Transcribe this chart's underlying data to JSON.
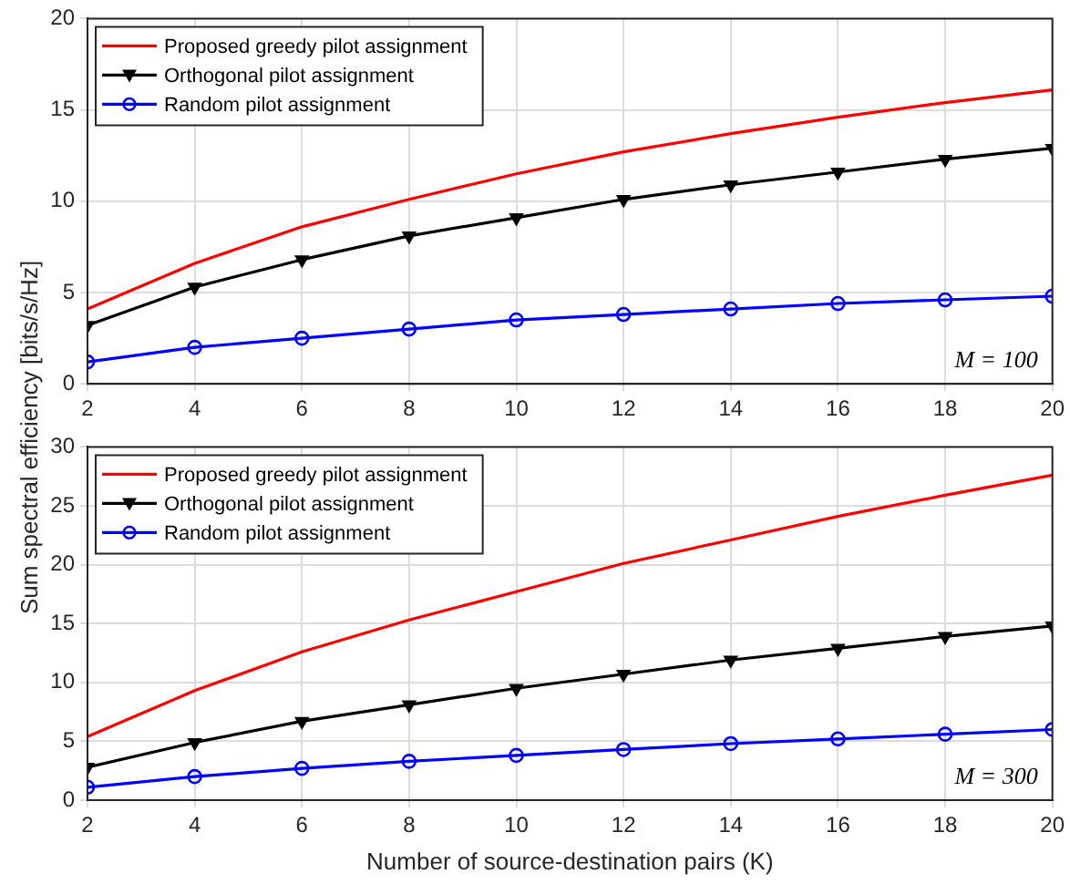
{
  "chart_data": [
    {
      "type": "line",
      "ylabel": "Sum spectral efficiency [bits/s/Hz]",
      "x": [
        2,
        4,
        6,
        8,
        10,
        12,
        14,
        16,
        18,
        20
      ],
      "xlim": [
        2,
        20
      ],
      "xticks": [
        2,
        4,
        6,
        8,
        10,
        12,
        14,
        16,
        18,
        20
      ],
      "ylim": [
        0,
        20
      ],
      "yticks": [
        0,
        5,
        10,
        15,
        20
      ],
      "grid": true,
      "legend": "top left",
      "annotations": [
        "M = 100"
      ],
      "series": [
        {
          "name": "Proposed greedy pilot assignment",
          "color": "#ff0000",
          "marker": "none",
          "values": [
            4.1,
            6.6,
            8.6,
            10.1,
            11.5,
            12.7,
            13.7,
            14.6,
            15.4,
            16.1
          ]
        },
        {
          "name": "Orthogonal pilot assignment",
          "color": "#000000",
          "marker": "triangle",
          "values": [
            3.2,
            5.3,
            6.8,
            8.1,
            9.1,
            10.1,
            10.9,
            11.6,
            12.3,
            12.9
          ]
        },
        {
          "name": "Random pilot assignment",
          "color": "#0000ff",
          "marker": "circle",
          "values": [
            1.2,
            2.0,
            2.5,
            3.0,
            3.5,
            3.8,
            4.1,
            4.4,
            4.6,
            4.8
          ]
        }
      ]
    },
    {
      "type": "line",
      "xlabel": "Number of source-destination pairs (K)",
      "x": [
        2,
        4,
        6,
        8,
        10,
        12,
        14,
        16,
        18,
        20
      ],
      "xlim": [
        2,
        20
      ],
      "xticks": [
        2,
        4,
        6,
        8,
        10,
        12,
        14,
        16,
        18,
        20
      ],
      "ylim": [
        0,
        30
      ],
      "yticks": [
        0,
        5,
        10,
        15,
        20,
        25,
        30
      ],
      "grid": true,
      "legend": "top left",
      "annotations": [
        "M = 300"
      ],
      "series": [
        {
          "name": "Proposed greedy pilot assignment",
          "color": "#ff0000",
          "marker": "none",
          "values": [
            5.4,
            9.3,
            12.6,
            15.3,
            17.7,
            20.1,
            22.1,
            24.1,
            25.9,
            27.6
          ]
        },
        {
          "name": "Orthogonal pilot assignment",
          "color": "#000000",
          "marker": "triangle",
          "values": [
            2.8,
            4.9,
            6.7,
            8.1,
            9.5,
            10.7,
            11.9,
            12.9,
            13.9,
            14.8
          ]
        },
        {
          "name": "Random pilot assignment",
          "color": "#0000ff",
          "marker": "circle",
          "values": [
            1.1,
            2.0,
            2.7,
            3.3,
            3.8,
            4.3,
            4.8,
            5.2,
            5.6,
            6.0
          ]
        }
      ]
    }
  ]
}
